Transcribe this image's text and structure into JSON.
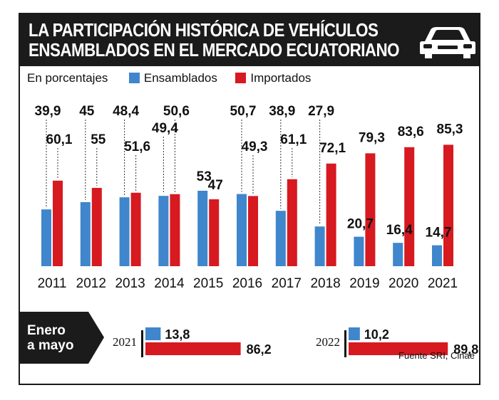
{
  "header": {
    "title_line1": "LA PARTICIPACIÓN HISTÓRICA DE VEHÍCULOS",
    "title_line2": "ENSAMBLADOS EN EL MERCADO ECUATORIANO",
    "icon": "car-icon"
  },
  "legend": {
    "unit_label": "En porcentajes",
    "ensamblados": "Ensamblados",
    "importados": "Importados"
  },
  "colors": {
    "ensamblados": "#3f86cc",
    "importados": "#d71920",
    "header_bg": "#1b1b1b"
  },
  "chart_data": [
    {
      "type": "bar",
      "title": "LA PARTICIPACIÓN HISTÓRICA DE VEHÍCULOS ENSAMBLADOS EN EL MERCADO ECUATORIANO",
      "ylabel": "En porcentajes",
      "categories": [
        "2011",
        "2012",
        "2013",
        "2014",
        "2015",
        "2016",
        "2017",
        "2018",
        "2019",
        "2020",
        "2021"
      ],
      "series": [
        {
          "name": "Ensamblados",
          "values": [
            39.9,
            45,
            48.4,
            49.4,
            53,
            50.7,
            38.9,
            27.9,
            20.7,
            16.4,
            14.7
          ],
          "labels": [
            "39,9",
            "45",
            "48,4",
            "49,4",
            "53",
            "50,7",
            "38,9",
            "27,9",
            "20,7",
            "16,4",
            "14,7"
          ]
        },
        {
          "name": "Importados",
          "values": [
            60.1,
            55,
            51.6,
            50.6,
            47,
            49.3,
            61.1,
            72.1,
            79.3,
            83.6,
            85.3
          ],
          "labels": [
            "60,1",
            "55",
            "51,6",
            "50,6",
            "47",
            "49,3",
            "61,1",
            "72,1",
            "79,3",
            "83,6",
            "85,3"
          ]
        }
      ],
      "ylim": [
        0,
        100
      ]
    },
    {
      "type": "bar",
      "orientation": "horizontal",
      "title": "Enero a mayo",
      "groups": [
        {
          "year": "2021",
          "ensamblados": 13.8,
          "ensamblados_label": "13,8",
          "importados": 86.2,
          "importados_label": "86,2"
        },
        {
          "year": "2022",
          "ensamblados": 10.2,
          "ensamblados_label": "10,2",
          "importados": 89.8,
          "importados_label": "89,8"
        }
      ],
      "xlim": [
        0,
        100
      ]
    }
  ],
  "bottom": {
    "badge_line1": "Enero",
    "badge_line2": "a mayo"
  },
  "source": "Fuente SRI, Cinae"
}
